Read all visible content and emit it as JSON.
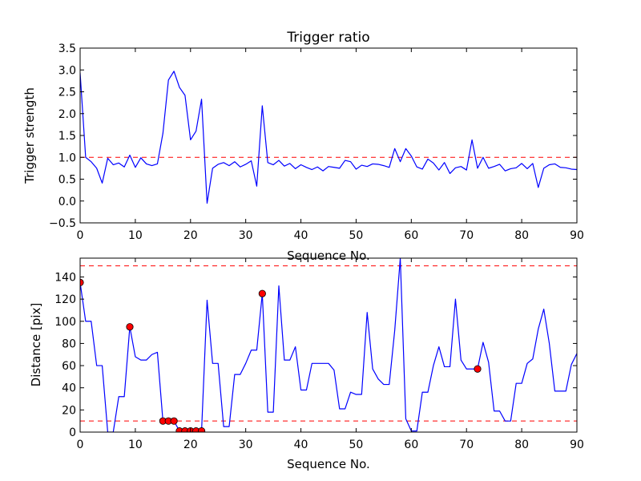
{
  "chart_data": [
    {
      "type": "line",
      "title": "Trigger ratio",
      "xlabel": "Sequence No.",
      "ylabel": "Trigger strength",
      "xlim": [
        0,
        90
      ],
      "ylim": [
        -0.5,
        3.5
      ],
      "xticks": [
        "0",
        "10",
        "20",
        "30",
        "40",
        "50",
        "60",
        "70",
        "80",
        "90"
      ],
      "yticks": [
        "−0.5",
        "0.0",
        "0.5",
        "1.0",
        "1.5",
        "2.0",
        "2.5",
        "3.0",
        "3.5"
      ],
      "threshold_lines": [
        1.0
      ],
      "series": [
        {
          "name": "trigger strength",
          "color": "#0000ff",
          "values": [
            2.93,
            1.0,
            0.9,
            0.75,
            0.41,
            0.98,
            0.83,
            0.87,
            0.78,
            1.05,
            0.77,
            0.99,
            0.85,
            0.81,
            0.85,
            1.55,
            2.77,
            2.97,
            2.6,
            2.42,
            1.4,
            1.6,
            2.33,
            -0.05,
            0.75,
            0.84,
            0.88,
            0.81,
            0.9,
            0.78,
            0.84,
            0.92,
            0.34,
            2.18,
            0.88,
            0.83,
            0.93,
            0.8,
            0.86,
            0.74,
            0.83,
            0.77,
            0.72,
            0.78,
            0.69,
            0.79,
            0.77,
            0.75,
            0.93,
            0.9,
            0.73,
            0.82,
            0.79,
            0.85,
            0.84,
            0.81,
            0.77,
            1.2,
            0.9,
            1.2,
            1.03,
            0.78,
            0.73,
            0.96,
            0.87,
            0.71,
            0.88,
            0.63,
            0.76,
            0.79,
            0.71,
            1.4,
            0.75,
            1.0,
            0.75,
            0.79,
            0.84,
            0.69,
            0.74,
            0.76,
            0.86,
            0.74,
            0.86,
            0.31,
            0.75,
            0.83,
            0.85,
            0.77,
            0.76,
            0.73,
            0.72
          ]
        }
      ]
    },
    {
      "type": "line",
      "title": "",
      "xlabel": "Sequence No.",
      "ylabel": "Distance [pix]",
      "xlim": [
        0,
        90
      ],
      "ylim": [
        0,
        157
      ],
      "xticks": [
        "0",
        "10",
        "20",
        "30",
        "40",
        "50",
        "60",
        "70",
        "80",
        "90"
      ],
      "yticks": [
        "0",
        "20",
        "40",
        "60",
        "80",
        "100",
        "120",
        "140"
      ],
      "threshold_lines": [
        10,
        150
      ],
      "series": [
        {
          "name": "distance",
          "color": "#0000ff",
          "values": [
            135,
            100,
            100,
            60,
            60,
            0,
            0,
            32,
            32,
            95,
            68,
            65,
            65,
            70,
            72,
            10,
            10,
            10,
            1,
            1,
            1,
            1,
            1,
            119,
            62,
            62,
            5,
            5,
            52,
            52,
            62,
            74,
            74,
            125,
            18,
            18,
            132,
            65,
            65,
            77,
            38,
            38,
            62,
            62,
            62,
            62,
            56,
            21,
            21,
            36,
            34,
            34,
            108,
            57,
            48,
            43,
            43,
            92,
            157,
            12,
            1,
            1,
            36,
            36,
            60,
            77,
            59,
            59,
            120,
            65,
            57,
            57,
            57,
            81,
            63,
            19,
            19,
            10,
            10,
            44,
            44,
            62,
            66,
            93,
            111,
            80,
            37,
            37,
            37,
            61,
            71
          ]
        },
        {
          "name": "triggered points",
          "color": "#ff0000",
          "x": [
            0,
            9,
            15,
            16,
            17,
            18,
            19,
            20,
            21,
            22,
            33,
            72
          ],
          "values": [
            135,
            95,
            10,
            10,
            10,
            1,
            1,
            1,
            1,
            1,
            125,
            57
          ]
        }
      ]
    }
  ]
}
